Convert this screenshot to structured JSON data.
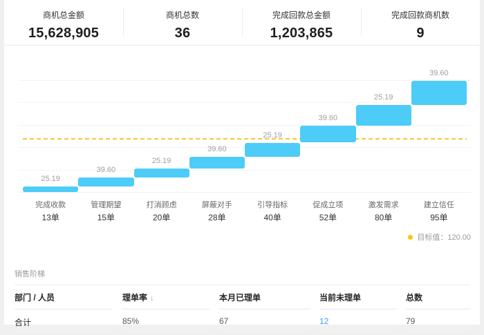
{
  "kpis": [
    {
      "label": "商机总金额",
      "value": "15,628,905"
    },
    {
      "label": "商机总数",
      "value": "36"
    },
    {
      "label": "完成回款总金额",
      "value": "1,203,865"
    },
    {
      "label": "完成回款商机数",
      "value": "9"
    }
  ],
  "chart_data": {
    "type": "bar",
    "variant": "stair-step-funnel",
    "title": "",
    "stages": [
      {
        "name": "完成收款",
        "count_label": "13单",
        "value": 25.19,
        "cum_from": 0,
        "cum_to": 12
      },
      {
        "name": "管理期望",
        "count_label": "15单",
        "value": 39.6,
        "cum_from": 12,
        "cum_to": 33
      },
      {
        "name": "打消顾虑",
        "count_label": "20单",
        "value": 25.19,
        "cum_from": 33,
        "cum_to": 53
      },
      {
        "name": "屏蔽对手",
        "count_label": "28单",
        "value": 39.6,
        "cum_from": 53,
        "cum_to": 78
      },
      {
        "name": "引导指标",
        "count_label": "40单",
        "value": 25.19,
        "cum_from": 78,
        "cum_to": 110
      },
      {
        "name": "促成立项",
        "count_label": "52单",
        "value": 39.6,
        "cum_from": 110,
        "cum_to": 147
      },
      {
        "name": "激发需求",
        "count_label": "80单",
        "value": 25.19,
        "cum_from": 147,
        "cum_to": 194
      },
      {
        "name": "建立信任",
        "count_label": "95单",
        "value": 39.6,
        "cum_from": 194,
        "cum_to": 247
      }
    ],
    "target": {
      "value": 120,
      "legend_label": "目标值：120.00"
    },
    "ylim": [
      0,
      290
    ],
    "grid_step": 50,
    "grid_max": 250,
    "bar_color": "#4dccf8",
    "target_color": "#fbc531",
    "legend_position": "bottom-right"
  },
  "table": {
    "section_title": "销售阶梯",
    "columns": [
      {
        "label": "部门 / 人员",
        "sort": ""
      },
      {
        "label": "理单率",
        "sort": "↓"
      },
      {
        "label": "本月已理单",
        "sort": ""
      },
      {
        "label": "当前未理单",
        "sort": ""
      },
      {
        "label": "总数",
        "sort": ""
      }
    ],
    "rows": [
      {
        "cells": [
          "合计",
          "85%",
          "67",
          "12",
          "79"
        ],
        "link_col": 3
      }
    ]
  }
}
